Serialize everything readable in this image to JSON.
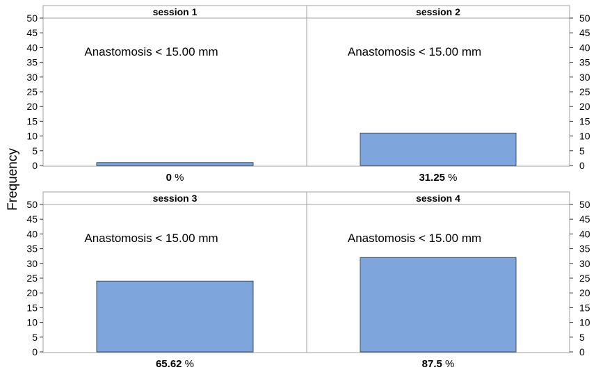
{
  "chart_data": {
    "type": "bar",
    "ylabel": "Frequency",
    "ylim": [
      0,
      50
    ],
    "yticks": [
      "0",
      "5",
      "10",
      "15",
      "20",
      "25",
      "30",
      "35",
      "40",
      "45",
      "50"
    ],
    "bar_color": "#7ea6dc",
    "bar_stroke": "#3f4f66",
    "panels": [
      {
        "title": "session 1",
        "annotation": "Anastomosis < 15.00 mm",
        "value": 1,
        "pct_value": "0",
        "pct_unit": "%"
      },
      {
        "title": "session 2",
        "annotation": "Anastomosis < 15.00 mm",
        "value": 11,
        "pct_value": "31.25",
        "pct_unit": "%"
      },
      {
        "title": "session 3",
        "annotation": "Anastomosis < 15.00 mm",
        "value": 24,
        "pct_value": "65.62",
        "pct_unit": "%"
      },
      {
        "title": "session 4",
        "annotation": "Anastomosis < 15.00 mm",
        "value": 32,
        "pct_value": "87.5",
        "pct_unit": "%"
      }
    ]
  }
}
